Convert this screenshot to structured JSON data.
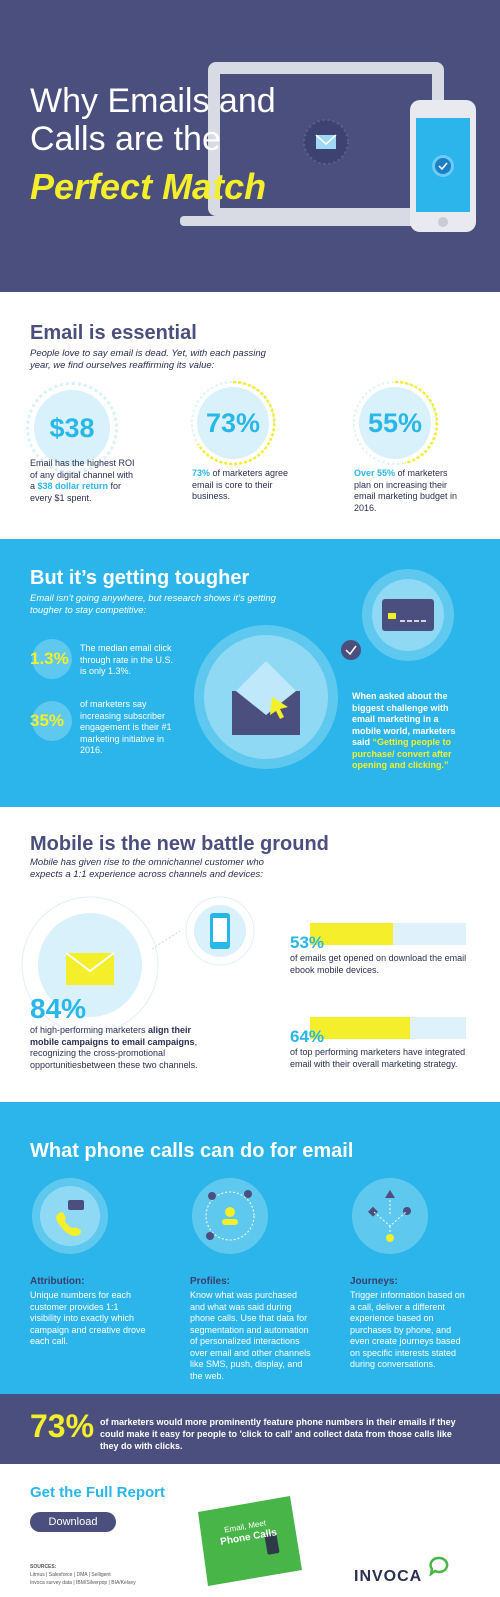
{
  "hero": {
    "title": "Why Emails and Calls are the",
    "highlight": "Perfect Match"
  },
  "essential": {
    "title": "Email is essential",
    "intro": "People love to say email is dead. Yet, with each passing year, we find ourselves reaffirming its value:",
    "stats": [
      {
        "value": "$38",
        "pre": "Email has the highest ROI of any digital channel with a ",
        "hl": "$38 dollar return",
        "post": " for every $1 spent."
      },
      {
        "value": "73%",
        "pre": "",
        "hl": "73%",
        "post": " of marketers agree email is core to their business."
      },
      {
        "value": "55%",
        "pre": "",
        "hl": "Over 55%",
        "post": " of marketers plan on increasing their email marketing budget in 2016."
      }
    ]
  },
  "tougher": {
    "title": "But it’s getting tougher",
    "intro": "Email isn’t going anywhere, but research shows it’s getting tougher to stay competitive:",
    "stat1_value": "1.3%",
    "stat1_text": "The median email click through rate in the U.S. is only 1.3%.",
    "stat2_value": "35%",
    "stat2_text": "of marketers say increasing subscriber engagement is their #1 marketing initiative in 2016.",
    "challenge_pre": "When asked about the biggest challenge with email marketing in a mobile world, marketers said ",
    "challenge_hl": "“Getting people to purchase/ convert after opening and clicking.”"
  },
  "mobile": {
    "title": "Mobile is the new battle ground",
    "intro": "Mobile has given rise to the omnichannel customer who expects a 1:1 experience across channels and devices:",
    "big_value": "84%",
    "big_pre": "of high-performing marketers ",
    "big_bold": "align their mobile campaigns to email campaigns",
    "big_post": ", recognizing the cross-promotional opportunitiesbetween these two channels.",
    "bars": [
      {
        "value": "53%",
        "fraction": 0.53,
        "text": "of emails get opened on download the email ebook mobile devices."
      },
      {
        "value": "64%",
        "fraction": 0.64,
        "text": "of top performing marketers have integrated email with their overall marketing strategy."
      }
    ]
  },
  "phone": {
    "title": "What phone calls can do for email",
    "items": [
      {
        "title": "Attribution:",
        "text": "Unique numbers for each customer provides 1:1 visibility into exactly which campaign and creative drove each call."
      },
      {
        "title": "Profiles:",
        "text": "Know what was purchased and what was said during phone calls. Use that data for segmentation and automation of personalized interactions over email and other channels like SMS, push, display, and the web."
      },
      {
        "title": "Journeys:",
        "text": "Trigger information based on a call, deliver a different experience based on purchases by phone, and even create journeys based on specific interests stated during conversations."
      }
    ]
  },
  "banner": {
    "value": "73%",
    "text": "of marketers would more prominently feature phone numbers in their emails if they could make it easy for people to 'click to call' and collect data from those calls like they do with clicks."
  },
  "footer": {
    "title": "Get the Full Report",
    "button": "Download",
    "sources_label": "SOURCES:",
    "sources_line1": "Litmus  |  Salesforce  |  DMA  |  Selligent",
    "sources_line2": "Invoca survey data  |  IBM/Silverpop  |  BIA/Kelsey",
    "book_line1": "Email, Meet",
    "book_line2": "Phone Calls",
    "logo": "INVOCA"
  },
  "colors": {
    "navy": "#4a4f7d",
    "blue": "#2bb5ea",
    "yellow": "#f4ef2a"
  }
}
